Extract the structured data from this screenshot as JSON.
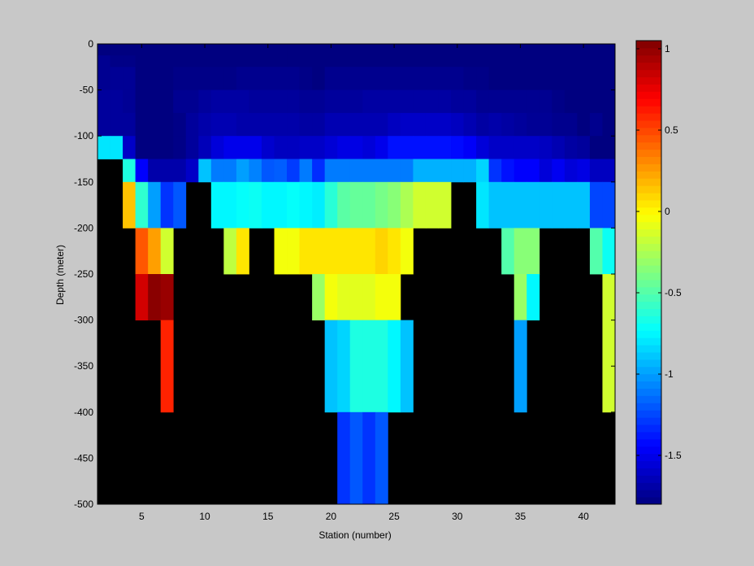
{
  "chart_data": {
    "type": "heatmap",
    "title": "",
    "xlabel": "Station (number)",
    "ylabel": "Depth (meter)",
    "xlim": [
      1.5,
      42.5
    ],
    "ylim": [
      -500,
      0
    ],
    "x_ticks": [
      5,
      10,
      15,
      20,
      25,
      30,
      35,
      40
    ],
    "y_ticks": [
      0,
      -50,
      -100,
      -150,
      -200,
      -250,
      -300,
      -350,
      -400,
      -450,
      -500
    ],
    "stations": [
      2,
      3,
      4,
      5,
      6,
      7,
      8,
      9,
      10,
      11,
      12,
      13,
      14,
      15,
      16,
      17,
      18,
      19,
      20,
      21,
      22,
      23,
      24,
      25,
      26,
      27,
      28,
      29,
      30,
      31,
      32,
      33,
      34,
      35,
      36,
      37,
      38,
      39,
      40,
      41,
      42
    ],
    "depth_bins": [
      {
        "top": 0,
        "bottom": -12.5
      },
      {
        "top": -12.5,
        "bottom": -25
      },
      {
        "top": -25,
        "bottom": -50
      },
      {
        "top": -50,
        "bottom": -75
      },
      {
        "top": -75,
        "bottom": -100
      },
      {
        "top": -100,
        "bottom": -125
      },
      {
        "top": -125,
        "bottom": -150
      },
      {
        "top": -150,
        "bottom": -200
      },
      {
        "top": -200,
        "bottom": -250
      },
      {
        "top": -250,
        "bottom": -300
      },
      {
        "top": -300,
        "bottom": -400
      },
      {
        "top": -400,
        "bottom": -500
      }
    ],
    "values": [
      [
        -1.8,
        -1.8,
        -1.8,
        -1.8,
        -1.8,
        -1.8,
        -1.8,
        -1.8,
        -1.8,
        -1.8,
        -1.8,
        -1.8,
        -1.8,
        -1.8,
        -1.8,
        -1.8,
        -1.8,
        -1.8,
        -1.8,
        -1.8,
        -1.8,
        -1.8,
        -1.8,
        -1.8,
        -1.8,
        -1.8,
        -1.8,
        -1.8,
        -1.8,
        -1.8,
        -1.8,
        -1.8,
        -1.8,
        -1.8,
        -1.8,
        -1.8,
        -1.8,
        -1.8,
        -1.8,
        -1.8,
        -1.8
      ],
      [
        -1.75,
        -1.78,
        -1.78,
        -1.8,
        -1.8,
        -1.8,
        -1.8,
        -1.8,
        -1.8,
        -1.8,
        -1.8,
        -1.8,
        -1.8,
        -1.8,
        -1.8,
        -1.8,
        -1.8,
        -1.8,
        -1.8,
        -1.8,
        -1.8,
        -1.8,
        -1.8,
        -1.8,
        -1.8,
        -1.8,
        -1.8,
        -1.8,
        -1.8,
        -1.8,
        -1.8,
        -1.8,
        -1.8,
        -1.8,
        -1.8,
        -1.8,
        -1.8,
        -1.8,
        -1.8,
        -1.8,
        -1.8
      ],
      [
        -1.75,
        -1.74,
        -1.74,
        -1.8,
        -1.8,
        -1.8,
        -1.78,
        -1.78,
        -1.78,
        -1.78,
        -1.78,
        -1.76,
        -1.76,
        -1.76,
        -1.76,
        -1.76,
        -1.78,
        -1.8,
        -1.76,
        -1.76,
        -1.76,
        -1.76,
        -1.76,
        -1.76,
        -1.76,
        -1.76,
        -1.76,
        -1.76,
        -1.76,
        -1.78,
        -1.78,
        -1.8,
        -1.8,
        -1.8,
        -1.8,
        -1.8,
        -1.8,
        -1.8,
        -1.8,
        -1.8,
        -1.8
      ],
      [
        -1.72,
        -1.72,
        -1.74,
        -1.8,
        -1.8,
        -1.8,
        -1.75,
        -1.75,
        -1.72,
        -1.7,
        -1.7,
        -1.7,
        -1.72,
        -1.72,
        -1.72,
        -1.72,
        -1.74,
        -1.74,
        -1.72,
        -1.72,
        -1.72,
        -1.7,
        -1.7,
        -1.7,
        -1.7,
        -1.7,
        -1.7,
        -1.7,
        -1.72,
        -1.72,
        -1.75,
        -1.75,
        -1.75,
        -1.75,
        -1.75,
        -1.75,
        -1.78,
        -1.8,
        -1.8,
        -1.8,
        -1.8
      ],
      [
        -1.72,
        -1.72,
        -1.72,
        -1.8,
        -1.8,
        -1.8,
        -1.78,
        -1.72,
        -1.68,
        -1.66,
        -1.66,
        -1.68,
        -1.68,
        -1.68,
        -1.68,
        -1.68,
        -1.7,
        -1.7,
        -1.66,
        -1.66,
        -1.66,
        -1.66,
        -1.66,
        -1.62,
        -1.6,
        -1.6,
        -1.6,
        -1.6,
        -1.62,
        -1.66,
        -1.7,
        -1.68,
        -1.7,
        -1.72,
        -1.74,
        -1.74,
        -1.76,
        -1.76,
        -1.8,
        -1.76,
        -1.8
      ],
      [
        -0.8,
        -0.8,
        -1.6,
        -1.8,
        -1.8,
        -1.8,
        -1.78,
        -1.72,
        -1.64,
        -1.55,
        -1.5,
        -1.5,
        -1.5,
        -1.58,
        -1.62,
        -1.62,
        -1.6,
        -1.6,
        -1.56,
        -1.52,
        -1.52,
        -1.55,
        -1.5,
        -1.4,
        -1.4,
        -1.4,
        -1.4,
        -1.4,
        -1.42,
        -1.46,
        -1.55,
        -1.6,
        -1.6,
        -1.6,
        -1.6,
        -1.62,
        -1.66,
        -1.7,
        -1.72,
        -1.8,
        -1.8
      ],
      [
        null,
        null,
        -0.65,
        -1.45,
        -1.68,
        -1.68,
        -1.68,
        -1.6,
        -0.9,
        -1.1,
        -1.1,
        -1.0,
        -1.08,
        -1.2,
        -1.18,
        -1.28,
        -1.1,
        -1.32,
        -1.1,
        -1.1,
        -1.1,
        -1.1,
        -1.1,
        -1.1,
        -1.1,
        -0.95,
        -0.95,
        -0.95,
        -0.95,
        -0.95,
        -0.85,
        -1.3,
        -1.4,
        -1.45,
        -1.45,
        -1.55,
        -1.48,
        -1.55,
        -1.52,
        -1.62,
        -1.62
      ],
      [
        null,
        null,
        0.15,
        -0.6,
        -1.0,
        -1.3,
        -1.2,
        null,
        null,
        -0.75,
        -0.75,
        -0.72,
        -0.7,
        -0.75,
        -0.75,
        -0.72,
        -0.75,
        -0.78,
        -0.62,
        -0.48,
        -0.45,
        -0.45,
        -0.4,
        -0.35,
        -0.25,
        -0.15,
        -0.15,
        -0.15,
        null,
        null,
        -0.8,
        -0.9,
        -0.9,
        -0.9,
        -0.9,
        -0.9,
        -0.9,
        -0.9,
        -0.9,
        -1.25,
        -1.25
      ],
      [
        null,
        null,
        null,
        0.45,
        0.25,
        -0.15,
        null,
        null,
        null,
        null,
        -0.2,
        0.05,
        null,
        null,
        -0.05,
        -0.05,
        0.05,
        0.05,
        0.05,
        0.05,
        0.05,
        0.05,
        0.1,
        0.05,
        -0.05,
        null,
        null,
        null,
        null,
        null,
        null,
        null,
        -0.5,
        -0.35,
        -0.35,
        null,
        null,
        null,
        null,
        -0.5,
        -0.7
      ],
      [
        null,
        null,
        null,
        0.82,
        1.02,
        0.98,
        null,
        null,
        null,
        null,
        null,
        null,
        null,
        null,
        null,
        null,
        null,
        -0.3,
        -0.05,
        -0.1,
        -0.1,
        -0.1,
        -0.05,
        -0.05,
        null,
        null,
        null,
        null,
        null,
        null,
        null,
        null,
        null,
        -0.3,
        -0.75,
        null,
        null,
        null,
        null,
        null,
        -0.15
      ],
      [
        null,
        null,
        null,
        null,
        null,
        0.6,
        null,
        null,
        null,
        null,
        null,
        null,
        null,
        null,
        null,
        null,
        null,
        null,
        -0.9,
        -0.85,
        -0.65,
        -0.65,
        -0.65,
        -0.75,
        -0.9,
        null,
        null,
        null,
        null,
        null,
        null,
        null,
        null,
        -1.0,
        null,
        null,
        null,
        null,
        null,
        null,
        -0.15
      ],
      [
        null,
        null,
        null,
        null,
        null,
        null,
        null,
        null,
        null,
        null,
        null,
        null,
        null,
        null,
        null,
        null,
        null,
        null,
        null,
        -1.3,
        -1.2,
        -1.3,
        -1.2,
        null,
        null,
        null,
        null,
        null,
        null,
        null,
        null,
        null,
        null,
        null,
        null,
        null,
        null,
        null,
        null,
        null,
        null
      ]
    ],
    "colorbar": {
      "range": [
        -1.8,
        1.05
      ],
      "ticks": [
        1,
        0.5,
        0,
        -0.5,
        -1,
        -1.5
      ],
      "colormap": "jet",
      "nodata_color": "#000000"
    }
  }
}
